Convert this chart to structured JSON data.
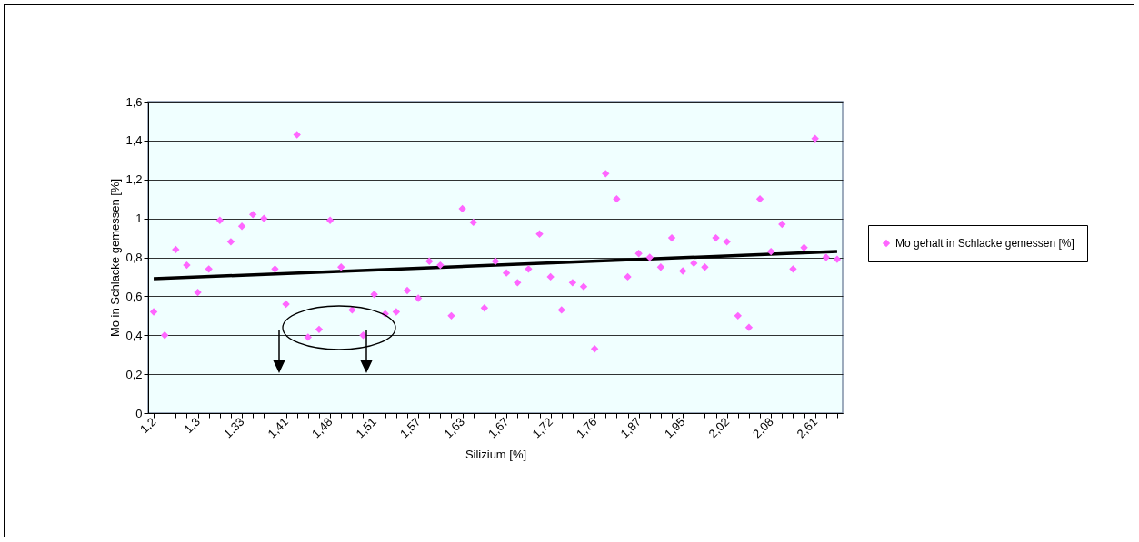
{
  "chart_data": {
    "type": "scatter",
    "xlabel": "Silizium [%]",
    "ylabel": "Mo in Schlacke gemessen [%]",
    "categories": [
      "1,2",
      null,
      null,
      null,
      "1,3",
      null,
      null,
      null,
      "1,33",
      null,
      null,
      null,
      "1,41",
      null,
      null,
      null,
      "1,48",
      null,
      null,
      null,
      "1,51",
      null,
      null,
      null,
      "1,57",
      null,
      null,
      null,
      "1,63",
      null,
      null,
      null,
      "1,67",
      null,
      null,
      null,
      "1,72",
      null,
      null,
      null,
      "1,76",
      null,
      null,
      null,
      "1,87",
      null,
      null,
      null,
      "1,95",
      null,
      null,
      null,
      "2,02",
      null,
      null,
      null,
      "2,08",
      null,
      null,
      null,
      "2,61",
      null,
      null
    ],
    "series": [
      {
        "name": "Mo gehalt in Schlacke gemessen [%]",
        "color": "#ff66ff",
        "marker": "diamond",
        "values": [
          0.52,
          0.4,
          0.84,
          0.76,
          0.62,
          0.74,
          0.99,
          0.88,
          0.96,
          1.02,
          1.0,
          0.74,
          0.56,
          1.43,
          0.39,
          0.43,
          0.99,
          0.75,
          0.53,
          0.4,
          0.61,
          0.51,
          0.52,
          0.63,
          0.59,
          0.78,
          0.76,
          0.5,
          1.05,
          0.98,
          0.54,
          0.78,
          0.72,
          0.67,
          0.74,
          0.92,
          0.7,
          0.53,
          0.67,
          0.65,
          0.33,
          1.23,
          1.1,
          0.7,
          0.82,
          0.8,
          0.75,
          0.9,
          0.73,
          0.77,
          0.75,
          0.9,
          0.88,
          0.5,
          0.44,
          1.1,
          0.83,
          0.97,
          0.74,
          0.85,
          1.41,
          0.8,
          0.79
        ]
      },
      {
        "type": "line",
        "color": "#000000",
        "line_style": "solid",
        "values": [
          0.69,
          null,
          null,
          null,
          null,
          null,
          null,
          null,
          null,
          null,
          null,
          null,
          null,
          null,
          null,
          null,
          null,
          null,
          null,
          null,
          null,
          null,
          null,
          null,
          null,
          null,
          null,
          null,
          null,
          null,
          null,
          null,
          null,
          null,
          null,
          null,
          null,
          null,
          null,
          null,
          null,
          null,
          null,
          null,
          null,
          null,
          null,
          null,
          null,
          null,
          null,
          null,
          null,
          null,
          null,
          null,
          null,
          null,
          null,
          null,
          null,
          null,
          0.83
        ]
      }
    ],
    "ylim": [
      0,
      1.6
    ],
    "yticks": [
      0,
      {
        "value": 0.2,
        "label": "0,2"
      },
      {
        "value": 0.4,
        "label": "0,4"
      },
      {
        "value": 0.6,
        "label": "0,6"
      },
      {
        "value": 0.8,
        "label": "0,8"
      },
      1,
      {
        "value": 1.2,
        "label": "1,2"
      },
      {
        "value": 1.4,
        "label": "1,4"
      },
      {
        "value": 1.6,
        "label": "1,6"
      }
    ],
    "grid": "y",
    "legend": "right"
  }
}
